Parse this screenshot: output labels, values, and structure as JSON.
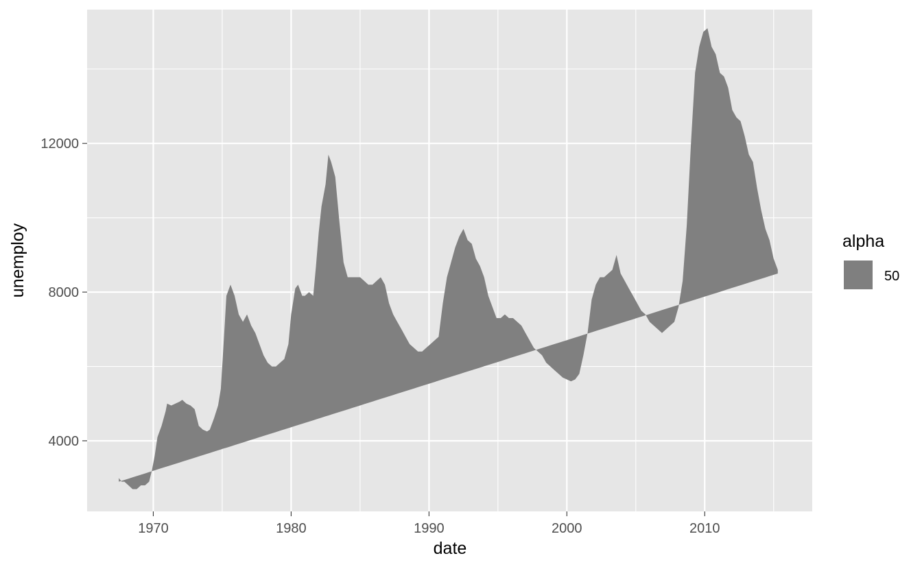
{
  "chart_data": {
    "type": "area",
    "xlabel": "date",
    "ylabel": "unemploy",
    "xlim": [
      1965.2,
      2017.8
    ],
    "ylim": [
      2100,
      15600
    ],
    "x_ticks": [
      1970,
      1980,
      1990,
      2000,
      2010
    ],
    "x_tick_labels": [
      "1970",
      "1980",
      "1990",
      "2000",
      "2010"
    ],
    "x_minor_ticks": [
      1975,
      1985,
      1995,
      2005,
      2015
    ],
    "y_ticks": [
      4000,
      8000,
      12000
    ],
    "y_tick_labels": [
      "4000",
      "8000",
      "12000"
    ],
    "y_minor_ticks": [
      2000,
      6000,
      10000,
      14000
    ],
    "grid": true,
    "legend": {
      "title": "alpha",
      "position": "right",
      "entries": [
        {
          "label": "50",
          "color": "#7f7f7f"
        }
      ]
    },
    "colors": {
      "panel": "#e6e6e6",
      "grid": "#ffffff",
      "fill": "#808080",
      "legend_key": "#7f7f7f"
    },
    "ribbon_baseline": {
      "x": [
        1967.5,
        2015.3
      ],
      "y": [
        2900,
        8500
      ]
    },
    "series": [
      {
        "x": [
          1967.5,
          1967.7,
          1967.9,
          1968.2,
          1968.5,
          1968.8,
          1969.1,
          1969.4,
          1969.7,
          1969.9,
          1970.1,
          1970.3,
          1970.6,
          1970.9,
          1971.0,
          1971.3,
          1971.6,
          1971.9,
          1972.1,
          1972.4,
          1972.7,
          1973.0,
          1973.3,
          1973.6,
          1973.9,
          1974.1,
          1974.4,
          1974.7,
          1974.9,
          1975.1,
          1975.3,
          1975.6,
          1975.9,
          1976.2,
          1976.5,
          1976.8,
          1977.1,
          1977.4,
          1977.7,
          1978.0,
          1978.3,
          1978.6,
          1978.9,
          1979.2,
          1979.5,
          1979.8,
          1980.0,
          1980.3,
          1980.5,
          1980.8,
          1981.0,
          1981.3,
          1981.6,
          1981.8,
          1982.0,
          1982.2,
          1982.5,
          1982.7,
          1982.9,
          1983.2,
          1983.5,
          1983.8,
          1984.1,
          1984.4,
          1984.7,
          1985.0,
          1985.3,
          1985.6,
          1985.9,
          1986.2,
          1986.5,
          1986.8,
          1987.1,
          1987.4,
          1987.7,
          1988.0,
          1988.3,
          1988.6,
          1988.9,
          1989.2,
          1989.5,
          1989.8,
          1990.1,
          1990.4,
          1990.7,
          1991.0,
          1991.3,
          1991.6,
          1991.9,
          1992.2,
          1992.5,
          1992.8,
          1993.1,
          1993.4,
          1993.7,
          1994.0,
          1994.3,
          1994.6,
          1994.9,
          1995.2,
          1995.5,
          1995.8,
          1996.1,
          1996.4,
          1996.7,
          1997.0,
          1997.3,
          1997.6,
          1997.9,
          1998.2,
          1998.5,
          1998.8,
          1999.1,
          1999.4,
          1999.7,
          2000.0,
          2000.3,
          2000.6,
          2000.9,
          2001.2,
          2001.5,
          2001.8,
          2002.1,
          2002.4,
          2002.7,
          2003.0,
          2003.3,
          2003.6,
          2003.9,
          2004.2,
          2004.5,
          2004.8,
          2005.1,
          2005.4,
          2005.7,
          2006.0,
          2006.3,
          2006.6,
          2006.9,
          2007.2,
          2007.5,
          2007.8,
          2008.1,
          2008.4,
          2008.7,
          2009.0,
          2009.3,
          2009.6,
          2009.9,
          2010.2,
          2010.5,
          2010.8,
          2011.1,
          2011.4,
          2011.7,
          2012.0,
          2012.3,
          2012.6,
          2012.9,
          2013.2,
          2013.5,
          2013.8,
          2014.1,
          2014.4,
          2014.7,
          2015.0,
          2015.3
        ],
        "y": [
          3000,
          2900,
          2900,
          2800,
          2700,
          2700,
          2800,
          2800,
          2900,
          3200,
          3600,
          4100,
          4400,
          4800,
          5000,
          4950,
          5000,
          5050,
          5100,
          5000,
          4950,
          4850,
          4400,
          4300,
          4250,
          4300,
          4600,
          4950,
          5400,
          6600,
          7900,
          8200,
          7900,
          7400,
          7200,
          7400,
          7100,
          6900,
          6600,
          6300,
          6100,
          6000,
          6000,
          6100,
          6200,
          6600,
          7400,
          8100,
          8200,
          7900,
          7900,
          8000,
          7900,
          8700,
          9600,
          10300,
          10900,
          11700,
          11500,
          11100,
          9900,
          8800,
          8400,
          8400,
          8400,
          8400,
          8300,
          8200,
          8200,
          8300,
          8400,
          8200,
          7700,
          7400,
          7200,
          7000,
          6800,
          6600,
          6500,
          6400,
          6400,
          6500,
          6600,
          6700,
          6800,
          7700,
          8400,
          8800,
          9200,
          9500,
          9700,
          9400,
          9300,
          8900,
          8700,
          8400,
          7900,
          7600,
          7300,
          7300,
          7400,
          7300,
          7300,
          7200,
          7100,
          6900,
          6700,
          6500,
          6400,
          6300,
          6100,
          6000,
          5900,
          5800,
          5700,
          5650,
          5600,
          5650,
          5800,
          6300,
          6900,
          7800,
          8200,
          8400,
          8400,
          8500,
          8600,
          9000,
          8500,
          8300,
          8100,
          7900,
          7700,
          7500,
          7400,
          7200,
          7100,
          7000,
          6900,
          7000,
          7100,
          7200,
          7600,
          8300,
          9800,
          12000,
          13900,
          14600,
          15000,
          15100,
          14600,
          14400,
          13900,
          13800,
          13500,
          12900,
          12700,
          12600,
          12200,
          11700,
          11500,
          10800,
          10200,
          9700,
          9400,
          8900,
          8600
        ]
      }
    ]
  }
}
